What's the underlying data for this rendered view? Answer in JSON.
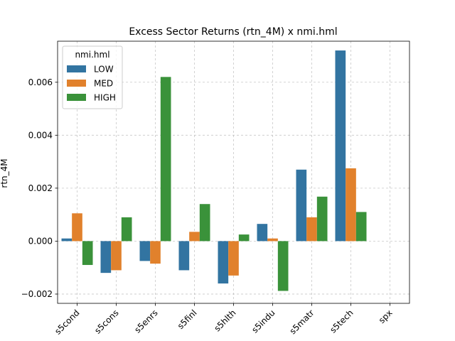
{
  "chart_data": {
    "type": "bar",
    "title": "Excess Sector Returns (rtn_4M) x nmi.hml",
    "xlabel": "",
    "ylabel": "rtn_4M",
    "categories": [
      "s5cond",
      "s5cons",
      "s5enrs",
      "s5finl",
      "s5hlth",
      "s5indu",
      "s5matr",
      "s5tech",
      "spx"
    ],
    "ylim": [
      -0.00235,
      0.00755
    ],
    "yticks": [
      -0.002,
      0.0,
      0.002,
      0.004,
      0.006
    ],
    "ytick_labels": [
      "−0.002",
      "0.000",
      "0.002",
      "0.004",
      "0.006"
    ],
    "grid": true,
    "legend": {
      "title": "nmi.hml",
      "placement": "top-left"
    },
    "series": [
      {
        "name": "LOW",
        "color": "#3274a1",
        "values": [
          0.0001,
          -0.0012,
          -0.00075,
          -0.0011,
          -0.0016,
          0.00065,
          0.0027,
          0.0072,
          null
        ]
      },
      {
        "name": "MED",
        "color": "#e1812c",
        "values": [
          0.00105,
          -0.0011,
          -0.00085,
          0.00035,
          -0.0013,
          0.0001,
          0.0009,
          0.00275,
          null
        ]
      },
      {
        "name": "HIGH",
        "color": "#3a923a",
        "values": [
          -0.0009,
          0.0009,
          0.0062,
          0.0014,
          0.00025,
          -0.00188,
          0.00168,
          0.0011,
          null
        ]
      }
    ]
  }
}
